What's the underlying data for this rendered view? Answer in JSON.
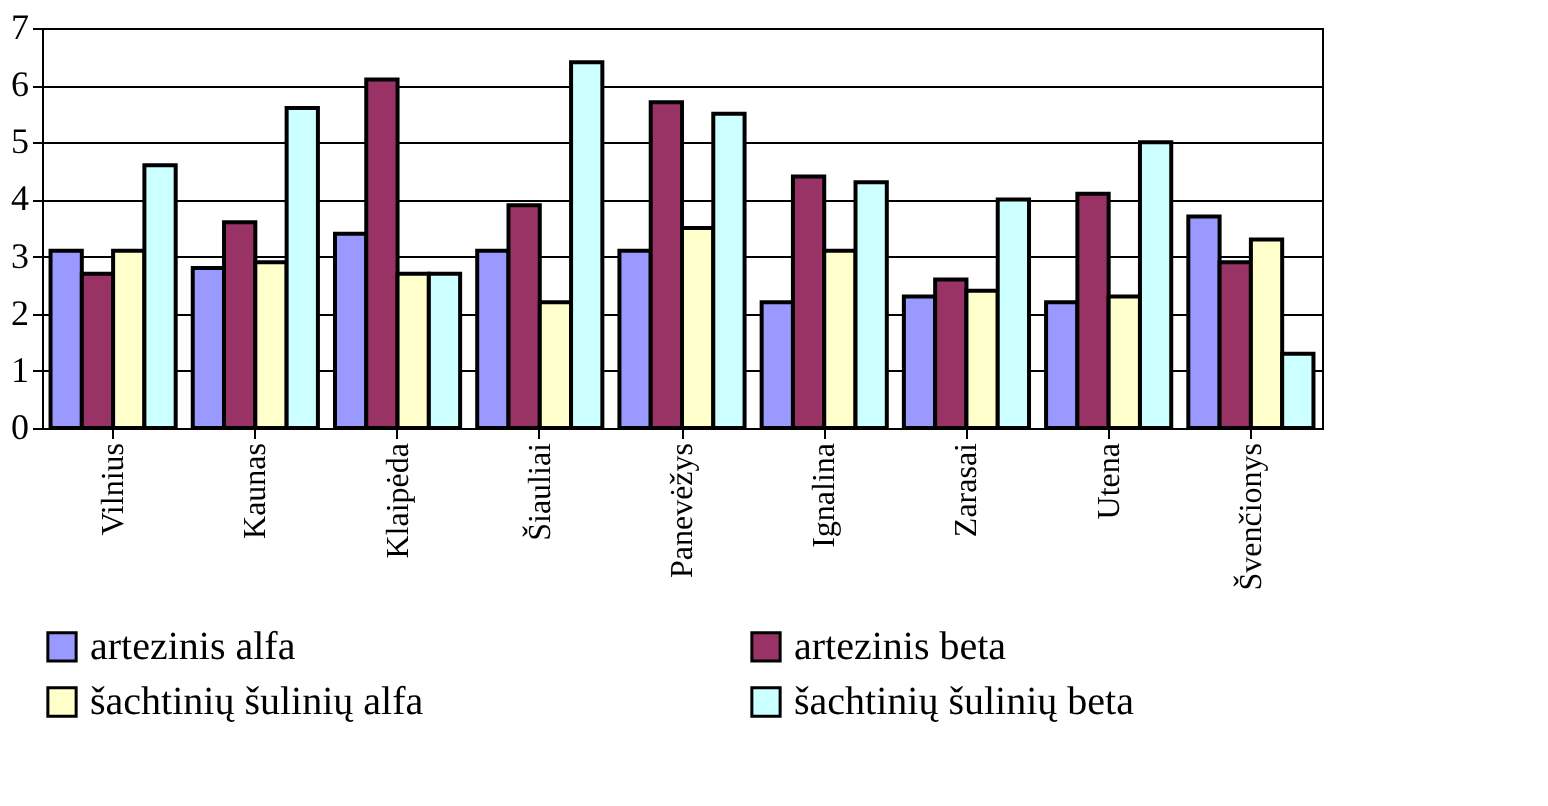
{
  "chart_data": {
    "type": "bar",
    "categories": [
      "Vilnius",
      "Kaunas",
      "Klaipėda",
      "Šiauliai",
      "Panevėžys",
      "Ignalina",
      "Zarasai",
      "Utena",
      "Švenčionys"
    ],
    "series": [
      {
        "name": "artezinis alfa",
        "color": "#9999ff",
        "values": [
          3.1,
          2.8,
          3.4,
          3.1,
          3.1,
          2.2,
          2.3,
          2.2,
          3.7
        ]
      },
      {
        "name": "artezinis beta",
        "color": "#993366",
        "values": [
          2.7,
          3.6,
          6.1,
          3.9,
          5.7,
          4.4,
          2.6,
          4.1,
          2.9
        ]
      },
      {
        "name": "šachtinių šulinių alfa",
        "color": "#ffffcc",
        "values": [
          3.1,
          2.9,
          2.7,
          2.2,
          3.5,
          3.1,
          2.4,
          2.3,
          3.3
        ]
      },
      {
        "name": "šachtinių šulinių beta",
        "color": "#ccffff",
        "values": [
          4.6,
          5.6,
          2.7,
          6.4,
          5.5,
          4.3,
          4.0,
          5.0,
          1.3
        ]
      }
    ],
    "ylim": [
      0,
      7
    ],
    "yticks": [
      0,
      1,
      2,
      3,
      4,
      5,
      6,
      7
    ],
    "grid": "y",
    "legend": "bottom"
  }
}
